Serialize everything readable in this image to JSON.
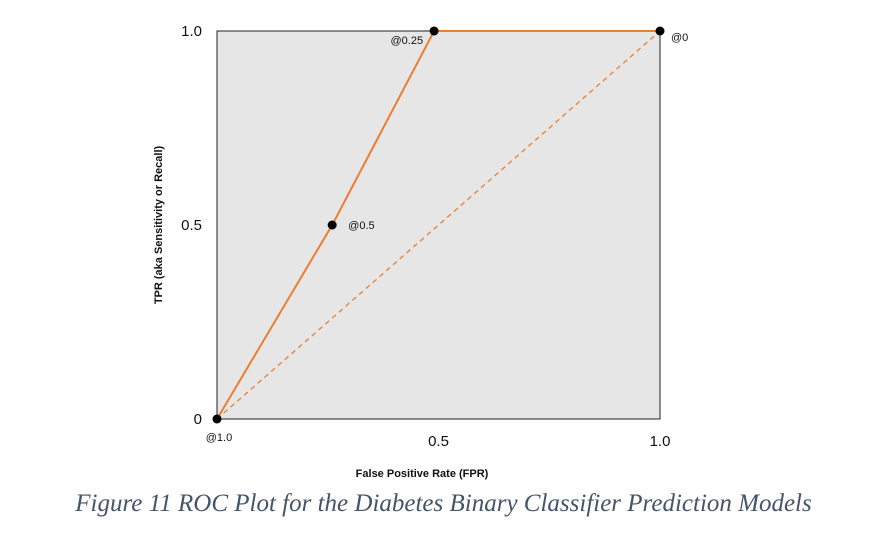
{
  "chart_data": {
    "type": "line",
    "xlabel": "False Positive Rate (FPR)",
    "ylabel": "TPR (aka Sensitivity or Recall)",
    "xlim": [
      0,
      1.0
    ],
    "ylim": [
      0,
      1.0
    ],
    "x_ticks": [
      {
        "value": 0.5,
        "label": "0.5"
      },
      {
        "value": 1.0,
        "label": "1.0"
      }
    ],
    "y_ticks": [
      {
        "value": 0,
        "label": "0"
      },
      {
        "value": 0.5,
        "label": "0.5"
      },
      {
        "value": 1.0,
        "label": "1.0"
      }
    ],
    "series": [
      {
        "style": "solid",
        "color": "#ED7D31",
        "points": [
          {
            "x": 0,
            "y": 0,
            "label": "@1.0"
          },
          {
            "x": 0.26,
            "y": 0.5,
            "label": "@0.5"
          },
          {
            "x": 0.49,
            "y": 1.0,
            "label": "@0.25"
          },
          {
            "x": 1.0,
            "y": 1.0,
            "label": "@0"
          }
        ]
      },
      {
        "style": "dashed",
        "color": "#ED7D31",
        "points": [
          {
            "x": 0,
            "y": 0
          },
          {
            "x": 1.0,
            "y": 1.0
          }
        ]
      }
    ],
    "plot_background": "#E6E6E6",
    "grid": false
  },
  "caption": {
    "text": "Figure 11 ROC Plot for the Diabetes Binary Classifier Prediction Models",
    "color": "#44546A"
  }
}
